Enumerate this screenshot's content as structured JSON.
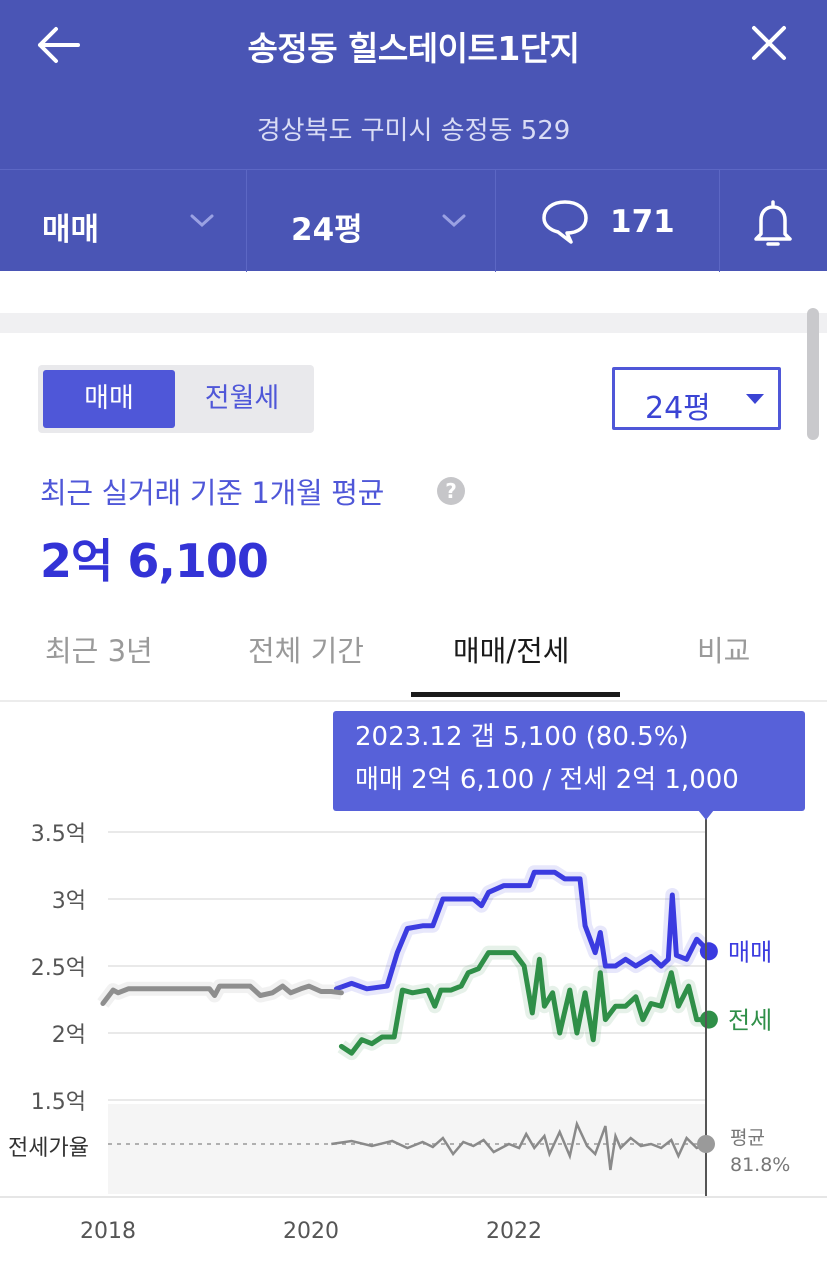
{
  "header": {
    "title": "송정동 힐스테이트1단지",
    "address": "경상북도 구미시 송정동 529",
    "deal_type": "매매",
    "size": "24평",
    "comment_count": "171"
  },
  "segment": {
    "options": [
      "매매",
      "전월세"
    ],
    "selected": "매매"
  },
  "size_select": {
    "value": "24평"
  },
  "summary": {
    "label": "최근 실거래 기준 1개월 평균",
    "help": "?",
    "price": "2억 6,100"
  },
  "tabs": [
    "최근 3년",
    "전체 기간",
    "매매/전세",
    "비교"
  ],
  "active_tab": "매매/전세",
  "tooltip": {
    "line1": "2023.12  갭 5,100 (80.5%)",
    "line2": "매매 2억 6,100 / 전세 2억 1,000"
  },
  "chart_data": {
    "type": "line",
    "yticks": [
      "3.5억",
      "3억",
      "2.5억",
      "2억",
      "1.5억"
    ],
    "xticks": [
      "2018",
      "2020",
      "2022"
    ],
    "ylim": [
      1.5,
      3.5
    ],
    "y_unit": "억",
    "series": [
      {
        "name": "매매",
        "color": "#3b3be0",
        "points": [
          [
            2020.25,
            2.33
          ],
          [
            2020.4,
            2.37
          ],
          [
            2020.55,
            2.33
          ],
          [
            2020.75,
            2.35
          ],
          [
            2020.85,
            2.6
          ],
          [
            2020.95,
            2.78
          ],
          [
            2021.1,
            2.8
          ],
          [
            2021.2,
            2.8
          ],
          [
            2021.3,
            3.0
          ],
          [
            2021.5,
            3.0
          ],
          [
            2021.6,
            3.0
          ],
          [
            2021.68,
            2.95
          ],
          [
            2021.75,
            3.05
          ],
          [
            2021.9,
            3.1
          ],
          [
            2022.1,
            3.1
          ],
          [
            2022.15,
            3.1
          ],
          [
            2022.2,
            3.2
          ],
          [
            2022.4,
            3.2
          ],
          [
            2022.5,
            3.15
          ],
          [
            2022.65,
            3.15
          ],
          [
            2022.7,
            2.8
          ],
          [
            2022.8,
            2.6
          ],
          [
            2022.85,
            2.75
          ],
          [
            2022.9,
            2.5
          ],
          [
            2023.0,
            2.5
          ],
          [
            2023.1,
            2.55
          ],
          [
            2023.2,
            2.5
          ],
          [
            2023.35,
            2.57
          ],
          [
            2023.45,
            2.5
          ],
          [
            2023.52,
            2.55
          ],
          [
            2023.56,
            3.03
          ],
          [
            2023.6,
            2.58
          ],
          [
            2023.7,
            2.55
          ],
          [
            2023.8,
            2.7
          ],
          [
            2023.92,
            2.61
          ]
        ]
      },
      {
        "name": "전세",
        "color": "#2f8f48",
        "points": [
          [
            2020.3,
            1.9
          ],
          [
            2020.4,
            1.85
          ],
          [
            2020.5,
            1.95
          ],
          [
            2020.6,
            1.92
          ],
          [
            2020.7,
            1.97
          ],
          [
            2020.82,
            1.97
          ],
          [
            2020.9,
            2.32
          ],
          [
            2021.0,
            2.3
          ],
          [
            2021.15,
            2.32
          ],
          [
            2021.22,
            2.2
          ],
          [
            2021.28,
            2.32
          ],
          [
            2021.38,
            2.32
          ],
          [
            2021.48,
            2.35
          ],
          [
            2021.55,
            2.45
          ],
          [
            2021.65,
            2.48
          ],
          [
            2021.75,
            2.6
          ],
          [
            2021.85,
            2.6
          ],
          [
            2022.0,
            2.6
          ],
          [
            2022.05,
            2.55
          ],
          [
            2022.1,
            2.5
          ],
          [
            2022.18,
            2.15
          ],
          [
            2022.25,
            2.55
          ],
          [
            2022.3,
            2.2
          ],
          [
            2022.38,
            2.3
          ],
          [
            2022.45,
            2.0
          ],
          [
            2022.55,
            2.32
          ],
          [
            2022.62,
            2.0
          ],
          [
            2022.7,
            2.3
          ],
          [
            2022.78,
            1.95
          ],
          [
            2022.85,
            2.45
          ],
          [
            2022.9,
            2.1
          ],
          [
            2023.0,
            2.2
          ],
          [
            2023.1,
            2.2
          ],
          [
            2023.2,
            2.27
          ],
          [
            2023.27,
            2.1
          ],
          [
            2023.35,
            2.22
          ],
          [
            2023.45,
            2.2
          ],
          [
            2023.55,
            2.45
          ],
          [
            2023.62,
            2.2
          ],
          [
            2023.72,
            2.35
          ],
          [
            2023.8,
            2.1
          ],
          [
            2023.92,
            2.1
          ]
        ]
      },
      {
        "name": "",
        "color": "#8e8e8e",
        "points": [
          [
            2017.95,
            2.22
          ],
          [
            2018.05,
            2.32
          ],
          [
            2018.1,
            2.3
          ],
          [
            2018.2,
            2.33
          ],
          [
            2018.5,
            2.33
          ],
          [
            2019.0,
            2.33
          ],
          [
            2019.05,
            2.28
          ],
          [
            2019.1,
            2.35
          ],
          [
            2019.4,
            2.35
          ],
          [
            2019.5,
            2.28
          ],
          [
            2019.62,
            2.3
          ],
          [
            2019.72,
            2.35
          ],
          [
            2019.8,
            2.3
          ],
          [
            2019.9,
            2.33
          ],
          [
            2019.98,
            2.35
          ],
          [
            2020.1,
            2.31
          ],
          [
            2020.2,
            2.31
          ],
          [
            2020.3,
            2.3
          ]
        ]
      }
    ],
    "ratio_band": {
      "label": "전세가율",
      "avg_label": "평균",
      "avg_value": "81.8%"
    },
    "cursor": {
      "x": 2023.92
    }
  }
}
